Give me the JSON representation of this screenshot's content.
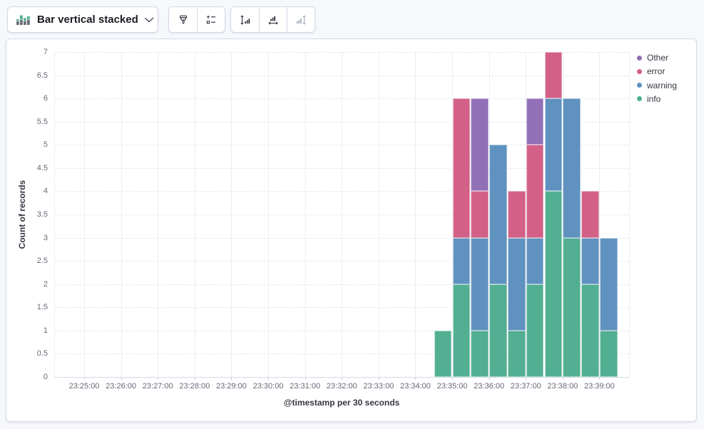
{
  "toolbar": {
    "chart_type_label": "Bar vertical stacked",
    "chart_type_icon": "bar-vertical-stacked-icon",
    "style_buttons": [
      {
        "icon": "brush-icon"
      },
      {
        "icon": "legend-icon"
      }
    ],
    "axis_buttons": [
      {
        "icon": "axis-left-icon",
        "disabled": false
      },
      {
        "icon": "axis-bottom-icon",
        "disabled": false
      },
      {
        "icon": "axis-right-icon",
        "disabled": true
      }
    ]
  },
  "chart_data": {
    "type": "bar",
    "stacked": true,
    "orientation": "vertical",
    "title": "",
    "xlabel": "@timestamp per 30 seconds",
    "ylabel": "Count of records",
    "ylim": [
      0,
      7
    ],
    "grid": true,
    "legend_position": "right",
    "bucket_interval_seconds": 30,
    "y_ticks": [
      "0",
      "0.5",
      "1",
      "1.5",
      "2",
      "2.5",
      "3",
      "3.5",
      "4",
      "4.5",
      "5",
      "5.5",
      "6",
      "6.5",
      "7"
    ],
    "x_tick_labels": [
      "23:25:00",
      "23:26:00",
      "23:27:00",
      "23:28:00",
      "23:29:00",
      "23:30:00",
      "23:31:00",
      "23:32:00",
      "23:33:00",
      "23:34:00",
      "23:35:00",
      "23:36:00",
      "23:37:00",
      "23:38:00",
      "23:39:00"
    ],
    "categories": [
      "23:34:30",
      "23:35:00",
      "23:35:30",
      "23:36:00",
      "23:36:30",
      "23:37:00",
      "23:37:30",
      "23:38:00",
      "23:38:30",
      "23:39:00"
    ],
    "series": [
      {
        "name": "info",
        "color": "#52AF92",
        "values": [
          1,
          2,
          1,
          2,
          1,
          2,
          4,
          3,
          2,
          1
        ]
      },
      {
        "name": "warning",
        "color": "#6092C0",
        "values": [
          0,
          1,
          2,
          3,
          2,
          1,
          2,
          3,
          1,
          2
        ]
      },
      {
        "name": "error",
        "color": "#D36086",
        "values": [
          0,
          3,
          1,
          0,
          1,
          2,
          1,
          0,
          1,
          0
        ]
      },
      {
        "name": "Other",
        "color": "#9170B8",
        "values": [
          0,
          0,
          2,
          0,
          0,
          1,
          0,
          0,
          0,
          0
        ]
      }
    ],
    "legend": {
      "items": [
        {
          "label": "Other",
          "color": "#9170B8"
        },
        {
          "label": "error",
          "color": "#D36086"
        },
        {
          "label": "warning",
          "color": "#6092C0"
        },
        {
          "label": "info",
          "color": "#52AF92"
        }
      ]
    }
  }
}
